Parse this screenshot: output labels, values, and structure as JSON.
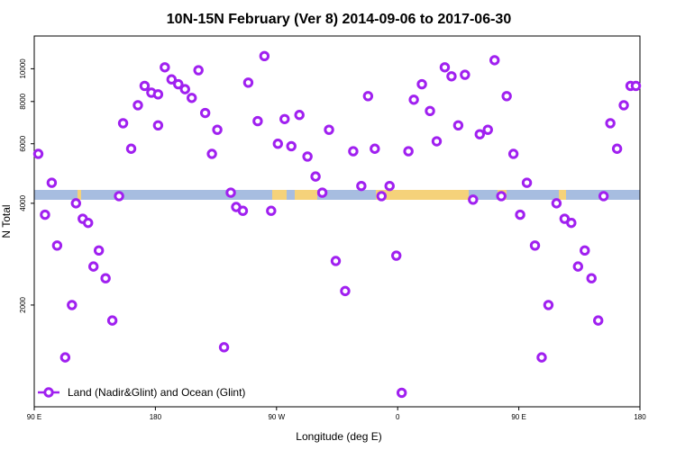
{
  "chart_data": {
    "type": "scatter",
    "title": "10N-15N February (Ver 8)   2014-09-06 to 2017-06-30",
    "xlabel": "Longitude (deg E)",
    "ylabel": "N Total",
    "x_tick_labels": [
      "90 E",
      "180",
      "90 W",
      "0",
      "90 E",
      "180"
    ],
    "x_tick_values": [
      90,
      180,
      270,
      360,
      450,
      540
    ],
    "xlim": [
      90,
      540
    ],
    "y_scale": "log",
    "y_tick_labels": [
      "2000",
      "4000",
      "6000",
      "8000",
      "10000"
    ],
    "y_tick_values": [
      2000,
      4000,
      6000,
      8000,
      10000
    ],
    "ylim": [
      1000,
      12500
    ],
    "marker_color": "#a020f0",
    "legend": {
      "label": "Land (Nadir&Glint) and Ocean (Glint)",
      "position": "bottom-left"
    },
    "land_ocean_strip": {
      "ocean_color": "#a7bde0",
      "land_color": "#f5d27a"
    },
    "series": [
      {
        "name": "Land (Nadir&Glint) and Ocean (Glint)",
        "x": [
          93,
          98,
          103,
          107,
          113,
          118,
          121,
          126,
          130,
          134,
          138,
          143,
          148,
          153,
          156,
          162,
          167,
          172,
          177,
          182,
          182,
          187,
          192,
          197,
          202,
          207,
          212,
          217,
          222,
          226,
          231,
          236,
          240,
          245,
          249,
          256,
          261,
          266,
          271,
          276,
          281,
          287,
          293,
          299,
          304,
          309,
          314,
          321,
          327,
          333,
          338,
          343,
          348,
          354,
          359,
          363,
          368,
          372,
          378,
          384,
          389,
          395,
          400,
          405,
          410,
          416,
          421,
          427,
          432,
          437,
          441,
          446,
          451,
          456,
          462,
          467,
          472,
          478,
          484,
          489,
          494,
          499,
          504,
          509,
          513,
          518,
          523,
          528,
          533,
          537
        ],
        "y": [
          5600,
          3700,
          4600,
          3000,
          1400,
          2000,
          4000,
          3600,
          3500,
          2600,
          2900,
          2400,
          1800,
          4200,
          6900,
          5800,
          7800,
          8900,
          8500,
          8400,
          6800,
          10100,
          9300,
          9000,
          8700,
          8200,
          9900,
          7400,
          5600,
          6600,
          1500,
          4300,
          3900,
          3800,
          9100,
          7000,
          10900,
          3800,
          6000,
          7100,
          5900,
          7300,
          5500,
          4800,
          4300,
          6600,
          2700,
          2200,
          5700,
          4500,
          8300,
          5800,
          4200,
          4500,
          2800,
          1100,
          5700,
          8100,
          9000,
          7500,
          6100,
          10100,
          9500,
          6800,
          9600,
          4100,
          6400,
          6600,
          10600,
          4200,
          8300,
          5600,
          3700,
          4600,
          3000,
          1400,
          2000,
          4000,
          3600,
          3500,
          2600,
          2900,
          2400,
          1800,
          4200,
          6900,
          5800,
          7800,
          8900,
          8900
        ]
      }
    ]
  }
}
